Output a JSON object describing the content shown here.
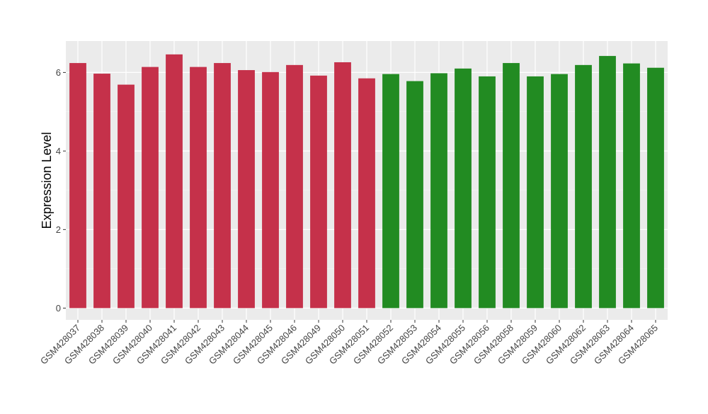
{
  "chart_data": {
    "type": "bar",
    "title": "",
    "xlabel": "",
    "ylabel": "Expression Level",
    "ylim": [
      -0.3,
      6.8
    ],
    "yticks": [
      0,
      2,
      4,
      6
    ],
    "grid": true,
    "background": "#EBEBEB",
    "categories": [
      "GSM428037",
      "GSM428038",
      "GSM428039",
      "GSM428040",
      "GSM428041",
      "GSM428042",
      "GSM428043",
      "GSM428044",
      "GSM428045",
      "GSM428046",
      "GSM428049",
      "GSM428050",
      "GSM428051",
      "GSM428052",
      "GSM428053",
      "GSM428054",
      "GSM428055",
      "GSM428056",
      "GSM428058",
      "GSM428059",
      "GSM428060",
      "GSM428062",
      "GSM428063",
      "GSM428064",
      "GSM428065"
    ],
    "values": [
      6.24,
      5.97,
      5.69,
      6.14,
      6.46,
      6.14,
      6.24,
      6.06,
      6.01,
      6.19,
      5.92,
      6.26,
      5.85,
      5.96,
      5.78,
      5.98,
      6.1,
      5.9,
      6.24,
      5.9,
      5.96,
      6.19,
      6.42,
      6.23,
      6.12
    ],
    "groups": [
      "A",
      "A",
      "A",
      "A",
      "A",
      "A",
      "A",
      "A",
      "A",
      "A",
      "A",
      "A",
      "A",
      "B",
      "B",
      "B",
      "B",
      "B",
      "B",
      "B",
      "B",
      "B",
      "B",
      "B",
      "B"
    ],
    "colors": {
      "A": "#C5314A",
      "B": "#228B22"
    }
  }
}
